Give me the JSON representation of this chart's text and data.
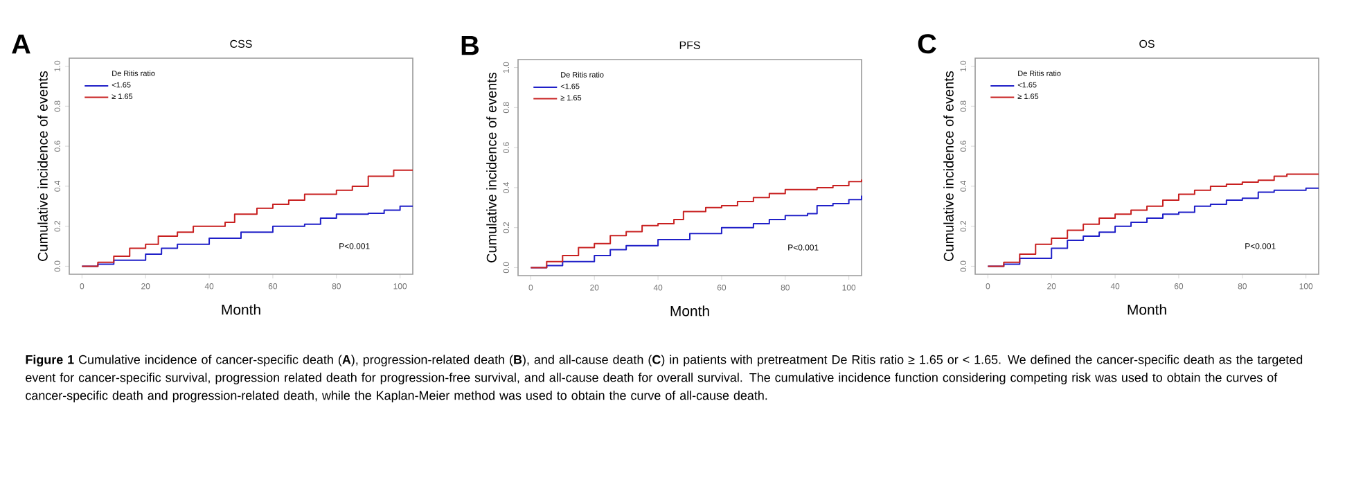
{
  "chart_data": [
    {
      "type": "step",
      "title": "CSS",
      "xlabel": "Month",
      "ylabel": "Cumulative incidence of events",
      "legend_title": "De Ritis ratio",
      "legend": "top left",
      "marker": "none",
      "annotations": [
        "A",
        "P<0.001",
        "**Figure 1** Cumulative incidence of cancer-specific death (**A**), progression-related death (**B**), and all-cause death (**C**) in patients with pretreatment De Ritis ratio ≥ 1.65 or < 1.65. We defined the cancer-specific death as the targeted event for cancer-specific survival, progression related death for progression-free survival, and all-cause death for overall survival. The cumulative incidence function considering competing risk was used to obtain the curves of cancer-specific death and progression-related death, while the Kaplan-Meier method was used to obtain the curve of all-cause death."
      ],
      "xlim": [
        -4,
        104
      ],
      "ylim": [
        -0.04,
        1.04
      ],
      "xticks": [
        0,
        20,
        40,
        60,
        80,
        100
      ],
      "yticks": [
        {
          "value": 0,
          "label": "0.0"
        },
        {
          "value": 0.2,
          "label": "0.2"
        },
        {
          "value": 0.4,
          "label": "0.4"
        },
        {
          "value": 0.6,
          "label": "0.6"
        },
        {
          "value": 0.8,
          "label": "0.8"
        },
        {
          "value": 1,
          "label": "1.0"
        }
      ],
      "series": [
        {
          "name": "<1.65",
          "color": "#2020c8",
          "x": [
            0,
            5,
            10,
            20,
            25,
            30,
            40,
            50,
            60,
            70,
            75,
            80,
            90,
            95,
            100,
            104
          ],
          "values": [
            0,
            0.01,
            0.03,
            0.06,
            0.09,
            0.11,
            0.14,
            0.17,
            0.2,
            0.21,
            0.24,
            0.26,
            0.265,
            0.28,
            0.3,
            0.3
          ]
        },
        {
          "name": "≥ 1.65",
          "color": "#c82020",
          "x": [
            0,
            5,
            10,
            15,
            20,
            24,
            30,
            35,
            40,
            45,
            48,
            55,
            60,
            65,
            70,
            80,
            85,
            90,
            98,
            104
          ],
          "values": [
            0,
            0.02,
            0.05,
            0.09,
            0.11,
            0.15,
            0.17,
            0.2,
            0.2,
            0.22,
            0.26,
            0.29,
            0.31,
            0.33,
            0.36,
            0.38,
            0.4,
            0.45,
            0.48,
            0.48
          ]
        }
      ]
    },
    {
      "type": "step",
      "title": "PFS",
      "xlabel": "Month",
      "ylabel": "Cumulative incidence of events",
      "legend_title": "De Ritis ratio",
      "legend": "top left",
      "marker": "none",
      "annotations": [
        "B",
        "P<0.001"
      ],
      "xlim": [
        -4,
        104
      ],
      "ylim": [
        -0.04,
        1.04
      ],
      "xticks": [
        0,
        20,
        40,
        60,
        80,
        100
      ],
      "yticks": [
        {
          "value": 0,
          "label": "0.0"
        },
        {
          "value": 0.2,
          "label": "0.2"
        },
        {
          "value": 0.4,
          "label": "0.4"
        },
        {
          "value": 0.6,
          "label": "0.6"
        },
        {
          "value": 0.8,
          "label": "0.8"
        },
        {
          "value": 1,
          "label": "1.0"
        }
      ],
      "series": [
        {
          "name": "<1.65",
          "color": "#2020c8",
          "x": [
            0,
            5,
            10,
            20,
            25,
            30,
            40,
            50,
            60,
            70,
            75,
            80,
            87,
            90,
            95,
            100,
            104
          ],
          "values": [
            0,
            0.01,
            0.03,
            0.06,
            0.09,
            0.11,
            0.14,
            0.17,
            0.2,
            0.22,
            0.24,
            0.26,
            0.27,
            0.31,
            0.32,
            0.34,
            0.36
          ]
        },
        {
          "name": "≥ 1.65",
          "color": "#c82020",
          "x": [
            0,
            5,
            10,
            15,
            20,
            25,
            30,
            35,
            40,
            45,
            48,
            55,
            60,
            65,
            70,
            75,
            80,
            90,
            95,
            100,
            104
          ],
          "values": [
            0,
            0.03,
            0.06,
            0.1,
            0.12,
            0.16,
            0.18,
            0.21,
            0.22,
            0.24,
            0.28,
            0.3,
            0.31,
            0.33,
            0.35,
            0.37,
            0.39,
            0.4,
            0.41,
            0.43,
            0.44
          ]
        }
      ]
    },
    {
      "type": "step",
      "title": "OS",
      "xlabel": "Month",
      "ylabel": "Cumulative incidence of events",
      "legend_title": "De Ritis ratio",
      "legend": "top left",
      "marker": "none",
      "annotations": [
        "C",
        "P<0.001"
      ],
      "xlim": [
        -4,
        104
      ],
      "ylim": [
        -0.04,
        1.04
      ],
      "xticks": [
        0,
        20,
        40,
        60,
        80,
        100
      ],
      "yticks": [
        {
          "value": 0,
          "label": "0.0"
        },
        {
          "value": 0.2,
          "label": "0.2"
        },
        {
          "value": 0.4,
          "label": "0.4"
        },
        {
          "value": 0.6,
          "label": "0.6"
        },
        {
          "value": 0.8,
          "label": "0.8"
        },
        {
          "value": 1,
          "label": "1.0"
        }
      ],
      "series": [
        {
          "name": "<1.65",
          "color": "#2020c8",
          "x": [
            0,
            5,
            10,
            20,
            25,
            30,
            35,
            40,
            45,
            50,
            55,
            60,
            65,
            70,
            75,
            80,
            85,
            90,
            100,
            104
          ],
          "values": [
            0,
            0.01,
            0.04,
            0.09,
            0.13,
            0.15,
            0.17,
            0.2,
            0.22,
            0.24,
            0.26,
            0.27,
            0.3,
            0.31,
            0.33,
            0.34,
            0.37,
            0.38,
            0.39,
            0.39
          ]
        },
        {
          "name": "≥ 1.65",
          "color": "#c82020",
          "x": [
            0,
            5,
            10,
            15,
            20,
            25,
            30,
            35,
            40,
            45,
            50,
            55,
            60,
            65,
            70,
            75,
            80,
            85,
            90,
            94,
            104
          ],
          "values": [
            0,
            0.02,
            0.06,
            0.11,
            0.14,
            0.18,
            0.21,
            0.24,
            0.26,
            0.28,
            0.3,
            0.33,
            0.36,
            0.38,
            0.4,
            0.41,
            0.42,
            0.43,
            0.45,
            0.46,
            0.46
          ]
        }
      ]
    }
  ]
}
